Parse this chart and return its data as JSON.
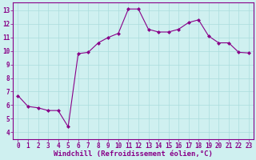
{
  "x": [
    0,
    1,
    2,
    3,
    4,
    5,
    6,
    7,
    8,
    9,
    10,
    11,
    12,
    13,
    14,
    15,
    16,
    17,
    18,
    19,
    20,
    21,
    22,
    23
  ],
  "y": [
    6.7,
    5.9,
    5.8,
    5.6,
    5.6,
    4.4,
    9.8,
    9.9,
    10.6,
    11.0,
    11.3,
    13.1,
    13.1,
    11.6,
    11.4,
    11.4,
    11.6,
    12.1,
    12.3,
    11.1,
    10.6,
    10.6,
    9.9,
    9.85
  ],
  "line_color": "#880088",
  "marker": "D",
  "marker_size": 2.0,
  "bg_color": "#cff0f0",
  "grid_color": "#aadddd",
  "xlabel": "Windchill (Refroidissement éolien,°C)",
  "xlabel_fontsize": 6.5,
  "ylabel_ticks": [
    4,
    5,
    6,
    7,
    8,
    9,
    10,
    11,
    12,
    13
  ],
  "xlim": [
    -0.5,
    23.5
  ],
  "ylim": [
    3.5,
    13.6
  ],
  "xtick_labels": [
    "0",
    "1",
    "2",
    "3",
    "4",
    "5",
    "6",
    "7",
    "8",
    "9",
    "10",
    "11",
    "12",
    "13",
    "14",
    "15",
    "16",
    "17",
    "18",
    "19",
    "20",
    "21",
    "22",
    "23"
  ],
  "tick_fontsize": 5.5,
  "tick_color": "#880088",
  "spine_color": "#880088"
}
